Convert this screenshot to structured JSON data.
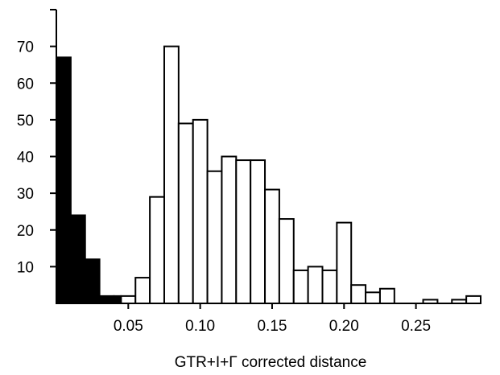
{
  "chart_data": {
    "type": "bar",
    "title": "",
    "xlabel": "GTR+I+Γ corrected distance",
    "ylabel": "",
    "xlim": [
      0,
      0.295
    ],
    "ylim": [
      0,
      80
    ],
    "bin_width": 0.01,
    "x_ticks": [
      {
        "value": 0.05,
        "label": "0.05"
      },
      {
        "value": 0.1,
        "label": "0.10"
      },
      {
        "value": 0.15,
        "label": "0.15"
      },
      {
        "value": 0.2,
        "label": "0.20"
      },
      {
        "value": 0.25,
        "label": "0.25"
      }
    ],
    "y_ticks": [
      {
        "value": 10,
        "label": "10"
      },
      {
        "value": 20,
        "label": "20"
      },
      {
        "value": 30,
        "label": "30"
      },
      {
        "value": 40,
        "label": "40"
      },
      {
        "value": 50,
        "label": "50"
      },
      {
        "value": 60,
        "label": "60"
      },
      {
        "value": 70,
        "label": "70"
      }
    ],
    "grid": false,
    "series": [
      {
        "fill": "filled",
        "color": "#000000",
        "bars": [
          {
            "x0": 0.0,
            "x1": 0.01,
            "value": 67
          },
          {
            "x0": 0.01,
            "x1": 0.02,
            "value": 24
          },
          {
            "x0": 0.02,
            "x1": 0.03,
            "value": 12
          },
          {
            "x0": 0.03,
            "x1": 0.04,
            "value": 2
          },
          {
            "x0": 0.04,
            "x1": 0.045,
            "value": 2
          }
        ]
      },
      {
        "fill": "open",
        "color": "#000000",
        "bars": [
          {
            "x0": 0.045,
            "x1": 0.055,
            "value": 2
          },
          {
            "x0": 0.055,
            "x1": 0.065,
            "value": 7
          },
          {
            "x0": 0.065,
            "x1": 0.075,
            "value": 29
          },
          {
            "x0": 0.075,
            "x1": 0.085,
            "value": 70
          },
          {
            "x0": 0.085,
            "x1": 0.095,
            "value": 49
          },
          {
            "x0": 0.095,
            "x1": 0.105,
            "value": 50
          },
          {
            "x0": 0.105,
            "x1": 0.115,
            "value": 36
          },
          {
            "x0": 0.115,
            "x1": 0.125,
            "value": 40
          },
          {
            "x0": 0.125,
            "x1": 0.135,
            "value": 39
          },
          {
            "x0": 0.135,
            "x1": 0.145,
            "value": 39
          },
          {
            "x0": 0.145,
            "x1": 0.155,
            "value": 31
          },
          {
            "x0": 0.155,
            "x1": 0.165,
            "value": 23
          },
          {
            "x0": 0.165,
            "x1": 0.175,
            "value": 9
          },
          {
            "x0": 0.175,
            "x1": 0.185,
            "value": 10
          },
          {
            "x0": 0.185,
            "x1": 0.195,
            "value": 9
          },
          {
            "x0": 0.195,
            "x1": 0.205,
            "value": 22
          },
          {
            "x0": 0.205,
            "x1": 0.215,
            "value": 5
          },
          {
            "x0": 0.215,
            "x1": 0.225,
            "value": 3
          },
          {
            "x0": 0.225,
            "x1": 0.235,
            "value": 4
          },
          {
            "x0": 0.255,
            "x1": 0.265,
            "value": 1
          },
          {
            "x0": 0.275,
            "x1": 0.285,
            "value": 1
          },
          {
            "x0": 0.285,
            "x1": 0.295,
            "value": 2
          }
        ]
      }
    ]
  }
}
